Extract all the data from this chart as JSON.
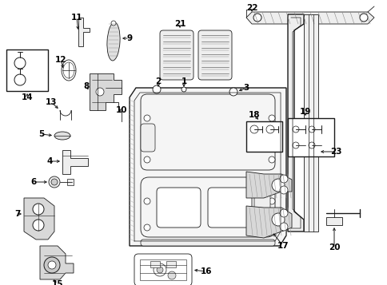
{
  "bg_color": "#ffffff",
  "line_color": "#1a1a1a",
  "label_color": "#000000",
  "fig_width": 4.85,
  "fig_height": 3.57,
  "dpi": 100
}
